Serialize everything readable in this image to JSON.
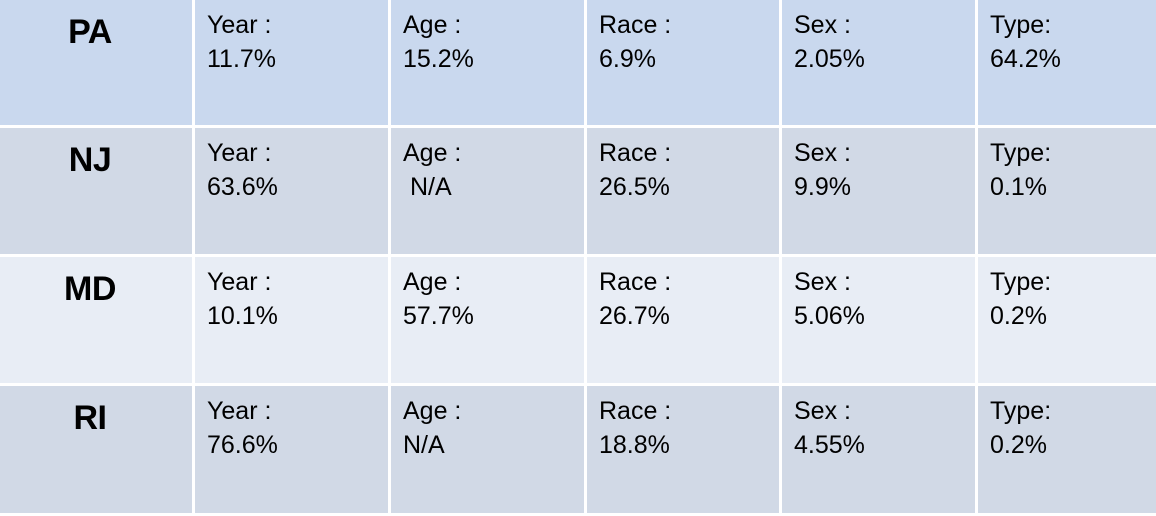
{
  "rows": [
    {
      "state": "PA",
      "metrics": [
        {
          "label": "Year :",
          "value": "11.7%"
        },
        {
          "label": "Age :",
          "value": "15.2%"
        },
        {
          "label": "Race :",
          "value": "6.9%"
        },
        {
          "label": "Sex :",
          "value": "2.05%"
        },
        {
          "label": "Type:",
          "value": "64.2%"
        }
      ]
    },
    {
      "state": "NJ",
      "metrics": [
        {
          "label": "Year :",
          "value": "63.6%"
        },
        {
          "label": "Age :",
          "value": " N/A"
        },
        {
          "label": "Race :",
          "value": "26.5%"
        },
        {
          "label": "Sex :",
          "value": "9.9%"
        },
        {
          "label": "Type:",
          "value": "0.1%"
        }
      ]
    },
    {
      "state": "MD",
      "metrics": [
        {
          "label": "Year :",
          "value": "10.1%"
        },
        {
          "label": "Age :",
          "value": "57.7%"
        },
        {
          "label": "Race :",
          "value": "26.7%"
        },
        {
          "label": "Sex :",
          "value": "5.06%"
        },
        {
          "label": "Type:",
          "value": "0.2%"
        }
      ]
    },
    {
      "state": "RI",
      "metrics": [
        {
          "label": "Year :",
          "value": "76.6%"
        },
        {
          "label": "Age :",
          "value": "N/A"
        },
        {
          "label": "Race :",
          "value": "18.8%"
        },
        {
          "label": "Sex :",
          "value": "4.55%"
        },
        {
          "label": "Type:",
          "value": "0.2%"
        }
      ]
    }
  ],
  "colors": {
    "row_1": "#c9d8ee",
    "row_2": "#d1d9e6",
    "row_3": "#e8edf5",
    "row_4": "#d1d9e6"
  }
}
